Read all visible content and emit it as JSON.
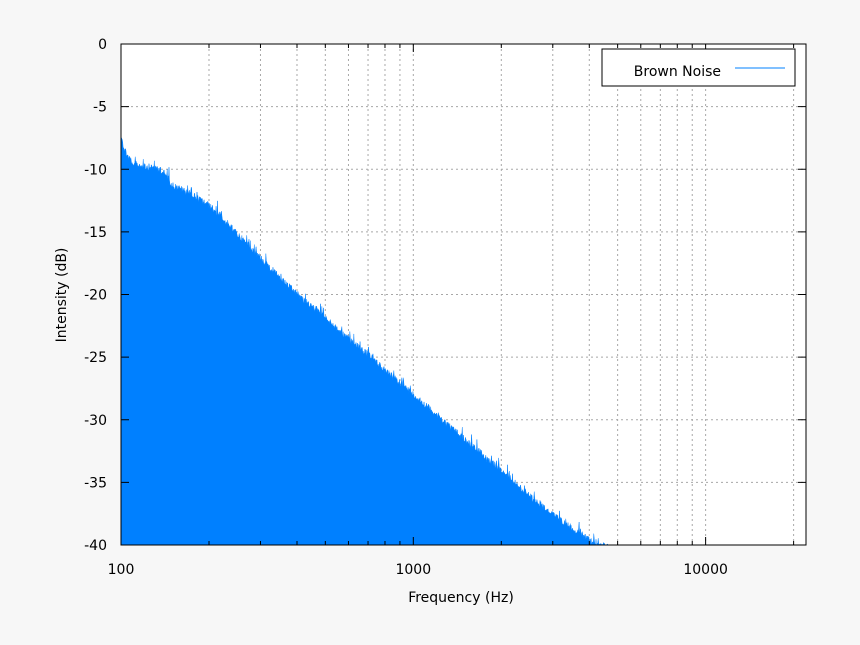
{
  "chart_data": {
    "type": "area",
    "xlabel": "Frequency (Hz)",
    "ylabel": "Intensity (dB)",
    "x_scale": "log",
    "xlim": [
      100,
      22050
    ],
    "ylim": [
      -40,
      0
    ],
    "grid": true,
    "legend_position": "top-right",
    "x_ticks": [
      {
        "value": 100,
        "label": "100"
      },
      {
        "value": 1000,
        "label": "1000"
      },
      {
        "value": 10000,
        "label": "10000"
      }
    ],
    "y_ticks": [
      {
        "value": 0,
        "label": "0"
      },
      {
        "value": -5,
        "label": "-5"
      },
      {
        "value": -10,
        "label": "-10"
      },
      {
        "value": -15,
        "label": "-15"
      },
      {
        "value": -20,
        "label": "-20"
      },
      {
        "value": -25,
        "label": "-25"
      },
      {
        "value": -30,
        "label": "-30"
      },
      {
        "value": -35,
        "label": "-35"
      },
      {
        "value": -40,
        "label": "-40"
      }
    ],
    "series": [
      {
        "name": "Brown Noise",
        "color": "#0080ff",
        "points": [
          [
            100,
            -7.4
          ],
          [
            105,
            -8.6
          ],
          [
            110,
            -9.3
          ],
          [
            120,
            -9.5
          ],
          [
            130,
            -9.6
          ],
          [
            140,
            -10.0
          ],
          [
            150,
            -11.0
          ],
          [
            170,
            -11.6
          ],
          [
            200,
            -12.6
          ],
          [
            220,
            -13.5
          ],
          [
            250,
            -14.9
          ],
          [
            300,
            -16.8
          ],
          [
            350,
            -18.4
          ],
          [
            400,
            -19.7
          ],
          [
            500,
            -21.6
          ],
          [
            600,
            -23.3
          ],
          [
            700,
            -24.5
          ],
          [
            800,
            -25.8
          ],
          [
            1000,
            -27.7
          ],
          [
            1200,
            -29.3
          ],
          [
            1500,
            -31.3
          ],
          [
            2000,
            -33.8
          ],
          [
            2500,
            -35.8
          ],
          [
            3000,
            -37.3
          ],
          [
            3500,
            -38.4
          ],
          [
            4000,
            -39.3
          ],
          [
            4700,
            -40.0
          ]
        ]
      }
    ]
  }
}
